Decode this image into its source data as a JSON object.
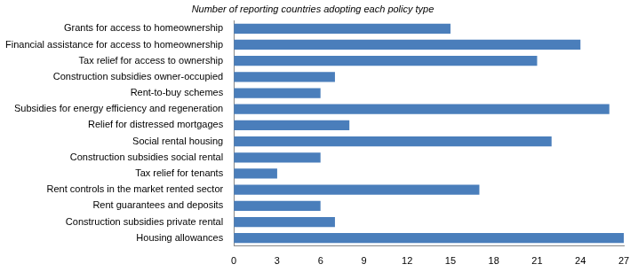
{
  "chart_data": {
    "type": "bar",
    "orientation": "horizontal",
    "title": "Number of reporting countries adopting each policy type",
    "categories": [
      "Grants for access to homeownership",
      "Financial assistance for access to homeownership",
      "Tax relief for access to ownership",
      "Construction subsidies owner-occupied",
      "Rent-to-buy schemes",
      "Subsidies for energy efficiency and regeneration",
      "Relief for distressed mortgages",
      "Social rental housing",
      "Construction subsidies social rental",
      "Tax relief for tenants",
      "Rent controls in the market rented sector",
      "Rent guarantees and deposits",
      "Construction subsidies private rental",
      "Housing allowances"
    ],
    "values": [
      15,
      24,
      21,
      7,
      6,
      26,
      8,
      22,
      6,
      3,
      17,
      6,
      7,
      27
    ],
    "color": "#4a7ebb",
    "xlim": [
      0,
      27
    ],
    "xticks": [
      0,
      3,
      6,
      9,
      12,
      15,
      18,
      21,
      24,
      27
    ],
    "grid": false
  }
}
